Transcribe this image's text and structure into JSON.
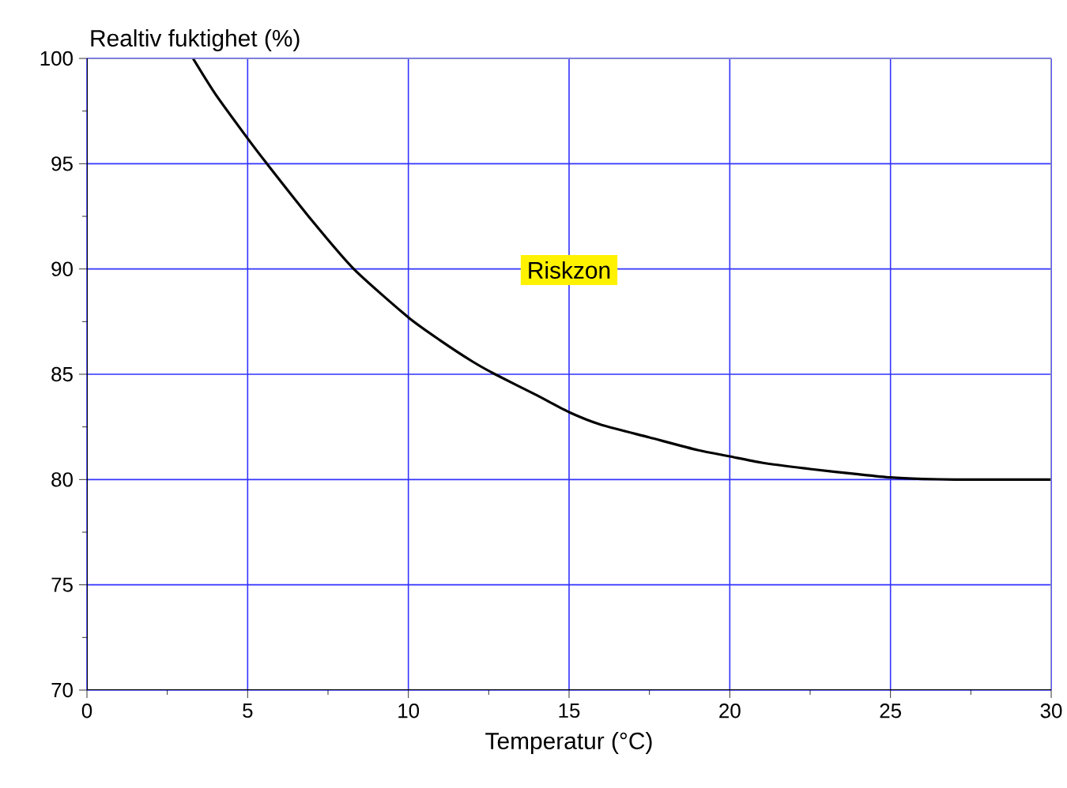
{
  "chart_data": {
    "type": "line",
    "xlabel": "Temperatur (°C)",
    "ylabel": "Realtiv fuktighet (%)",
    "x": [
      3.3,
      4,
      5,
      5.6,
      7,
      8.3,
      10,
      11,
      12,
      12.7,
      14,
      15,
      16,
      17.5,
      19,
      20,
      21,
      22.5,
      24,
      25,
      26,
      27,
      28,
      30
    ],
    "series": [
      {
        "color": "#000000",
        "values": [
          100,
          98.3,
          96.2,
          95,
          92.3,
          90,
          87.7,
          86.6,
          85.6,
          85,
          84.0,
          83.2,
          82.6,
          82.0,
          81.4,
          81.1,
          80.8,
          80.5,
          80.25,
          80.1,
          80.03,
          80,
          80,
          80
        ]
      }
    ],
    "xlim": [
      0,
      30
    ],
    "ylim": [
      70,
      100
    ],
    "xticks": [
      0,
      5,
      10,
      15,
      20,
      25,
      30
    ],
    "yticks": [
      70,
      75,
      80,
      85,
      90,
      95,
      100
    ],
    "grid": true,
    "annotations": [
      "Riskzon"
    ]
  }
}
